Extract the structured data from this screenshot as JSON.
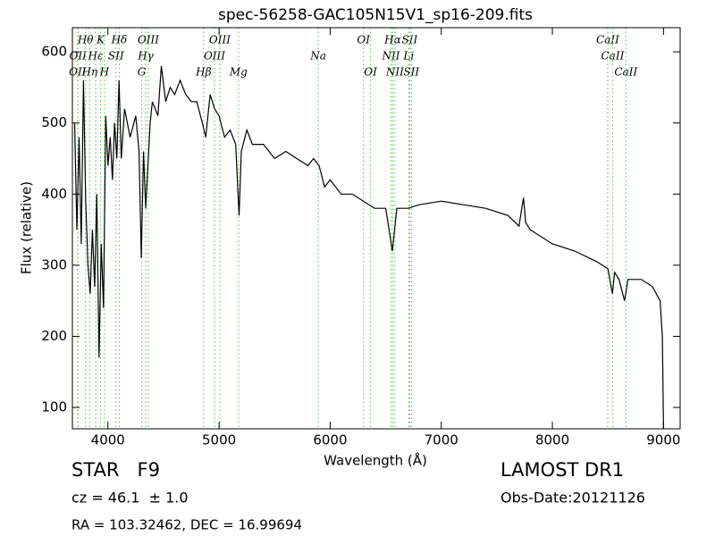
{
  "chart_data": {
    "type": "line",
    "title": "spec-56258-GAC105N15V1_sp16-209.fits",
    "xlabel": "Wavelength (Å)",
    "ylabel": "Flux (relative)",
    "color": "#000000",
    "line_color": "#66cc66",
    "xlim": [
      3680,
      9150
    ],
    "ylim": [
      70,
      634
    ],
    "xticks": [
      4000,
      5000,
      6000,
      7000,
      8000,
      9000
    ],
    "yticks": [
      100,
      200,
      300,
      400,
      500,
      600
    ],
    "x": [
      3700,
      3720,
      3740,
      3760,
      3780,
      3800,
      3820,
      3840,
      3860,
      3880,
      3900,
      3920,
      3940,
      3960,
      3980,
      4000,
      4020,
      4040,
      4060,
      4080,
      4100,
      4120,
      4150,
      4200,
      4250,
      4280,
      4300,
      4320,
      4340,
      4380,
      4400,
      4450,
      4480,
      4520,
      4560,
      4600,
      4650,
      4700,
      4750,
      4800,
      4850,
      4880,
      4920,
      4960,
      5000,
      5050,
      5100,
      5150,
      5180,
      5200,
      5250,
      5300,
      5400,
      5500,
      5600,
      5700,
      5800,
      5850,
      5900,
      5950,
      6000,
      6100,
      6200,
      6300,
      6400,
      6500,
      6560,
      6600,
      6700,
      6800,
      7000,
      7200,
      7400,
      7600,
      7700,
      7740,
      7760,
      7800,
      8000,
      8200,
      8400,
      8500,
      8540,
      8560,
      8600,
      8650,
      8680,
      8800,
      8900,
      8970,
      8990,
      9000
    ],
    "values": [
      500,
      350,
      480,
      330,
      560,
      390,
      300,
      260,
      350,
      270,
      400,
      170,
      330,
      240,
      510,
      440,
      480,
      420,
      500,
      450,
      560,
      450,
      520,
      480,
      510,
      460,
      310,
      460,
      380,
      500,
      530,
      510,
      580,
      530,
      550,
      540,
      560,
      540,
      530,
      530,
      500,
      480,
      540,
      520,
      510,
      480,
      490,
      470,
      370,
      460,
      490,
      470,
      470,
      450,
      460,
      450,
      440,
      450,
      440,
      410,
      420,
      400,
      400,
      390,
      380,
      380,
      320,
      380,
      380,
      385,
      390,
      385,
      380,
      370,
      355,
      395,
      360,
      350,
      330,
      320,
      305,
      295,
      260,
      290,
      280,
      250,
      280,
      280,
      270,
      250,
      200,
      70
    ],
    "lines": [
      {
        "wavelength": 3727,
        "label": "OII"
      },
      {
        "wavelength": 3730,
        "label": "OII"
      },
      {
        "wavelength": 3798,
        "label": "Hθ"
      },
      {
        "wavelength": 3835,
        "label": "Hη"
      },
      {
        "wavelength": 3889,
        "label": "Hε"
      },
      {
        "wavelength": 3934,
        "label": "K"
      },
      {
        "wavelength": 3968,
        "label": "H"
      },
      {
        "wavelength": 4072,
        "label": "SII"
      },
      {
        "wavelength": 4102,
        "label": "Hδ"
      },
      {
        "wavelength": 4304,
        "label": "G"
      },
      {
        "wavelength": 4340,
        "label": "Hγ"
      },
      {
        "wavelength": 4363,
        "label": "OIII"
      },
      {
        "wavelength": 4861,
        "label": "Hβ"
      },
      {
        "wavelength": 4959,
        "label": "OIII"
      },
      {
        "wavelength": 5007,
        "label": "OIII"
      },
      {
        "wavelength": 5175,
        "label": "Mg"
      },
      {
        "wavelength": 5893,
        "label": "Na"
      },
      {
        "wavelength": 6300,
        "label": "OI"
      },
      {
        "wavelength": 6363,
        "label": "OI"
      },
      {
        "wavelength": 6548,
        "label": "NII"
      },
      {
        "wavelength": 6563,
        "label": "Hα"
      },
      {
        "wavelength": 6583,
        "label": "NII"
      },
      {
        "wavelength": 6707,
        "label": "Li"
      },
      {
        "wavelength": 6716,
        "label": "SII"
      },
      {
        "wavelength": 6731,
        "label": "SII"
      },
      {
        "wavelength": 8498,
        "label": "CaII"
      },
      {
        "wavelength": 8542,
        "label": "CaII"
      },
      {
        "wavelength": 8662,
        "label": "CaII"
      }
    ],
    "annotations": {
      "class": "STAR   F9",
      "redshift": "cz = 46.1  ± 1.0",
      "survey": "LAMOST DR1",
      "obs_date": "Obs-Date:20121126",
      "coords": "RA = 103.32462, DEC = 16.99694"
    }
  }
}
